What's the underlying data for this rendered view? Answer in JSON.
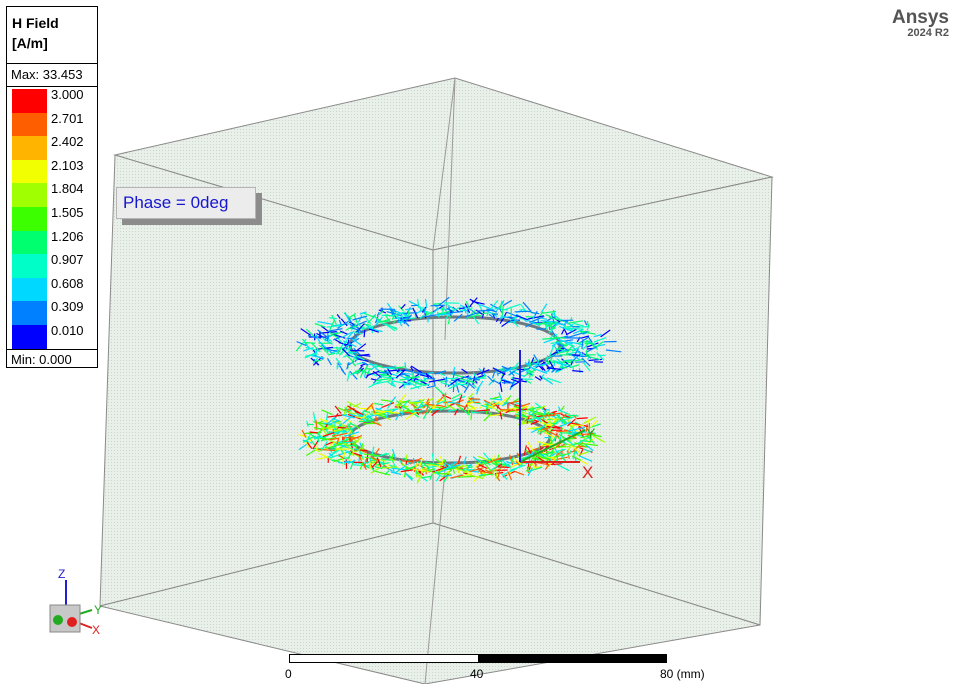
{
  "legend": {
    "title": "H Field\n[A/m]",
    "max_label": "Max: 33.453",
    "min_label": "Min: 0.000",
    "levels": [
      {
        "value": "3.000",
        "color": "#ff0000"
      },
      {
        "value": "2.701",
        "color": "#ff5e00"
      },
      {
        "value": "2.402",
        "color": "#ffb400"
      },
      {
        "value": "2.103",
        "color": "#f2ff00"
      },
      {
        "value": "1.804",
        "color": "#a0ff00"
      },
      {
        "value": "1.505",
        "color": "#3cff00"
      },
      {
        "value": "1.206",
        "color": "#00ff6e"
      },
      {
        "value": "0.907",
        "color": "#00ffc8"
      },
      {
        "value": "0.608",
        "color": "#00d8ff"
      },
      {
        "value": "0.309",
        "color": "#0080ff"
      },
      {
        "value": "0.010",
        "color": "#0000ff"
      }
    ]
  },
  "phase_label": "Phase = 0deg",
  "brand": {
    "name": "Ansys",
    "version": "2024 R2"
  },
  "scale": {
    "labels": [
      "0",
      "40",
      "80 (mm)"
    ]
  },
  "axes": {
    "x": "X",
    "y": "Y",
    "z": "Z"
  },
  "colors": {
    "box_edge": "#8a8a8a",
    "box_fill": "#d2dfd2"
  }
}
